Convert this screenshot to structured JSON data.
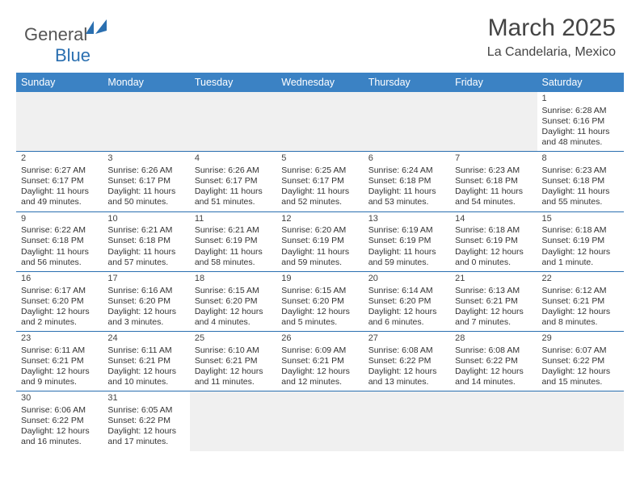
{
  "logo": {
    "text1": "General",
    "text2": "Blue"
  },
  "title": "March 2025",
  "subtitle": "La Candelaria, Mexico",
  "days": [
    "Sunday",
    "Monday",
    "Tuesday",
    "Wednesday",
    "Thursday",
    "Friday",
    "Saturday"
  ],
  "colors": {
    "header_bg": "#3b82c4",
    "border": "#2a6fb0",
    "empty_bg": "#f0f0f0"
  },
  "grid": [
    [
      null,
      null,
      null,
      null,
      null,
      null,
      {
        "n": "1",
        "sr": "Sunrise: 6:28 AM",
        "ss": "Sunset: 6:16 PM",
        "dl": "Daylight: 11 hours and 48 minutes."
      }
    ],
    [
      {
        "n": "2",
        "sr": "Sunrise: 6:27 AM",
        "ss": "Sunset: 6:17 PM",
        "dl": "Daylight: 11 hours and 49 minutes."
      },
      {
        "n": "3",
        "sr": "Sunrise: 6:26 AM",
        "ss": "Sunset: 6:17 PM",
        "dl": "Daylight: 11 hours and 50 minutes."
      },
      {
        "n": "4",
        "sr": "Sunrise: 6:26 AM",
        "ss": "Sunset: 6:17 PM",
        "dl": "Daylight: 11 hours and 51 minutes."
      },
      {
        "n": "5",
        "sr": "Sunrise: 6:25 AM",
        "ss": "Sunset: 6:17 PM",
        "dl": "Daylight: 11 hours and 52 minutes."
      },
      {
        "n": "6",
        "sr": "Sunrise: 6:24 AM",
        "ss": "Sunset: 6:18 PM",
        "dl": "Daylight: 11 hours and 53 minutes."
      },
      {
        "n": "7",
        "sr": "Sunrise: 6:23 AM",
        "ss": "Sunset: 6:18 PM",
        "dl": "Daylight: 11 hours and 54 minutes."
      },
      {
        "n": "8",
        "sr": "Sunrise: 6:23 AM",
        "ss": "Sunset: 6:18 PM",
        "dl": "Daylight: 11 hours and 55 minutes."
      }
    ],
    [
      {
        "n": "9",
        "sr": "Sunrise: 6:22 AM",
        "ss": "Sunset: 6:18 PM",
        "dl": "Daylight: 11 hours and 56 minutes."
      },
      {
        "n": "10",
        "sr": "Sunrise: 6:21 AM",
        "ss": "Sunset: 6:18 PM",
        "dl": "Daylight: 11 hours and 57 minutes."
      },
      {
        "n": "11",
        "sr": "Sunrise: 6:21 AM",
        "ss": "Sunset: 6:19 PM",
        "dl": "Daylight: 11 hours and 58 minutes."
      },
      {
        "n": "12",
        "sr": "Sunrise: 6:20 AM",
        "ss": "Sunset: 6:19 PM",
        "dl": "Daylight: 11 hours and 59 minutes."
      },
      {
        "n": "13",
        "sr": "Sunrise: 6:19 AM",
        "ss": "Sunset: 6:19 PM",
        "dl": "Daylight: 11 hours and 59 minutes."
      },
      {
        "n": "14",
        "sr": "Sunrise: 6:18 AM",
        "ss": "Sunset: 6:19 PM",
        "dl": "Daylight: 12 hours and 0 minutes."
      },
      {
        "n": "15",
        "sr": "Sunrise: 6:18 AM",
        "ss": "Sunset: 6:19 PM",
        "dl": "Daylight: 12 hours and 1 minute."
      }
    ],
    [
      {
        "n": "16",
        "sr": "Sunrise: 6:17 AM",
        "ss": "Sunset: 6:20 PM",
        "dl": "Daylight: 12 hours and 2 minutes."
      },
      {
        "n": "17",
        "sr": "Sunrise: 6:16 AM",
        "ss": "Sunset: 6:20 PM",
        "dl": "Daylight: 12 hours and 3 minutes."
      },
      {
        "n": "18",
        "sr": "Sunrise: 6:15 AM",
        "ss": "Sunset: 6:20 PM",
        "dl": "Daylight: 12 hours and 4 minutes."
      },
      {
        "n": "19",
        "sr": "Sunrise: 6:15 AM",
        "ss": "Sunset: 6:20 PM",
        "dl": "Daylight: 12 hours and 5 minutes."
      },
      {
        "n": "20",
        "sr": "Sunrise: 6:14 AM",
        "ss": "Sunset: 6:20 PM",
        "dl": "Daylight: 12 hours and 6 minutes."
      },
      {
        "n": "21",
        "sr": "Sunrise: 6:13 AM",
        "ss": "Sunset: 6:21 PM",
        "dl": "Daylight: 12 hours and 7 minutes."
      },
      {
        "n": "22",
        "sr": "Sunrise: 6:12 AM",
        "ss": "Sunset: 6:21 PM",
        "dl": "Daylight: 12 hours and 8 minutes."
      }
    ],
    [
      {
        "n": "23",
        "sr": "Sunrise: 6:11 AM",
        "ss": "Sunset: 6:21 PM",
        "dl": "Daylight: 12 hours and 9 minutes."
      },
      {
        "n": "24",
        "sr": "Sunrise: 6:11 AM",
        "ss": "Sunset: 6:21 PM",
        "dl": "Daylight: 12 hours and 10 minutes."
      },
      {
        "n": "25",
        "sr": "Sunrise: 6:10 AM",
        "ss": "Sunset: 6:21 PM",
        "dl": "Daylight: 12 hours and 11 minutes."
      },
      {
        "n": "26",
        "sr": "Sunrise: 6:09 AM",
        "ss": "Sunset: 6:21 PM",
        "dl": "Daylight: 12 hours and 12 minutes."
      },
      {
        "n": "27",
        "sr": "Sunrise: 6:08 AM",
        "ss": "Sunset: 6:22 PM",
        "dl": "Daylight: 12 hours and 13 minutes."
      },
      {
        "n": "28",
        "sr": "Sunrise: 6:08 AM",
        "ss": "Sunset: 6:22 PM",
        "dl": "Daylight: 12 hours and 14 minutes."
      },
      {
        "n": "29",
        "sr": "Sunrise: 6:07 AM",
        "ss": "Sunset: 6:22 PM",
        "dl": "Daylight: 12 hours and 15 minutes."
      }
    ],
    [
      {
        "n": "30",
        "sr": "Sunrise: 6:06 AM",
        "ss": "Sunset: 6:22 PM",
        "dl": "Daylight: 12 hours and 16 minutes."
      },
      {
        "n": "31",
        "sr": "Sunrise: 6:05 AM",
        "ss": "Sunset: 6:22 PM",
        "dl": "Daylight: 12 hours and 17 minutes."
      },
      null,
      null,
      null,
      null,
      null
    ]
  ]
}
